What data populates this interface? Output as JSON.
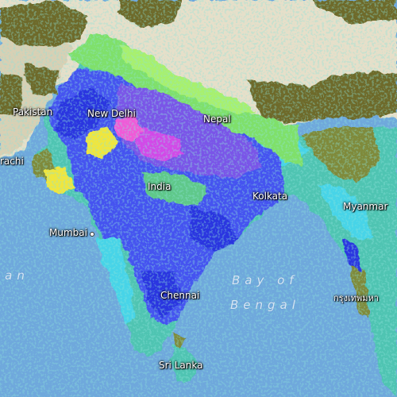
{
  "map": {
    "labels": {
      "pakistan": "Pakistan",
      "new_delhi": "New Delhi",
      "nepal": "Nepal",
      "karachi": "rachi",
      "mumbai": "Mumbai",
      "india": "India",
      "kolkata": "Kolkata",
      "myanmar": "Myanmar",
      "chennai": "Chennai",
      "sri_lanka": "Sri Lanka",
      "bangkok": "กรุงเทพมหา",
      "arabian_sea": "ian"
    },
    "water_labels": {
      "bay_line1": "Bay of",
      "bay_line2": "Bengal"
    },
    "colors": {
      "ocean": "#6fa8dc",
      "terrain_plateau": "#e6dfc9",
      "terrain_desert": "#d8d0b4",
      "dry_olive": "#6e6a2a",
      "green": "#7fe06a",
      "light_green": "#a8f06e",
      "teal": "#4fc4b2",
      "cyan": "#46d4e8",
      "blue": "#4452f0",
      "dark_blue": "#2a36e0",
      "purple": "#7a55e8",
      "magenta": "#d24ae8",
      "pink": "#f05ad8",
      "yellow": "#f0e63c",
      "olive_green": "#7f8a3a"
    }
  }
}
